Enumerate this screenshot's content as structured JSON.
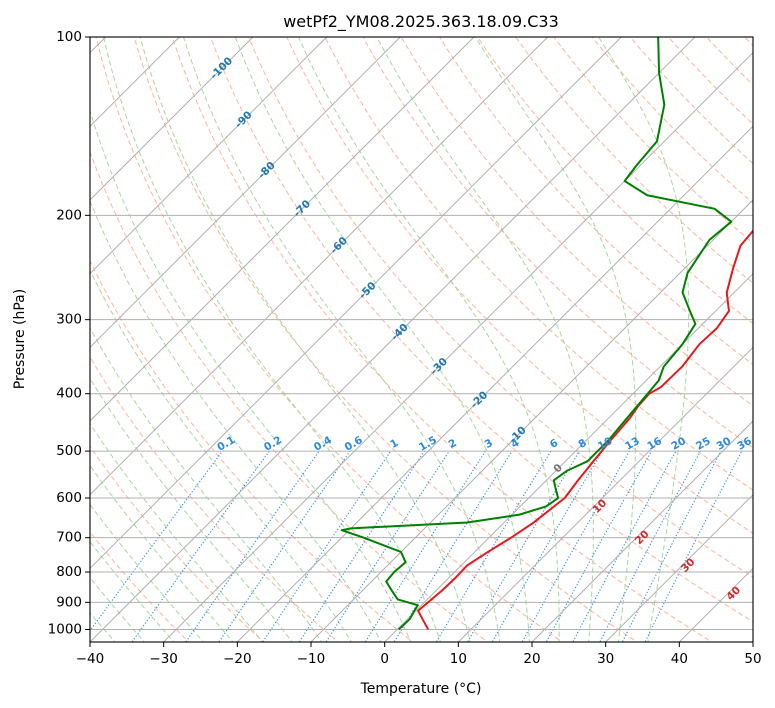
{
  "chart_data": {
    "type": "line",
    "chart_kind": "skew-T log-p",
    "title": "wetPf2_YM08.2025.363.18.09.C33",
    "xlabel": "Temperature (°C)",
    "ylabel": "Pressure (hPa)",
    "xlim": [
      -40,
      50
    ],
    "ylim_pressure": [
      1050,
      100
    ],
    "x_ticks": [
      -40,
      -30,
      -20,
      -10,
      0,
      10,
      20,
      30,
      40,
      50
    ],
    "x_tick_labels": [
      "−40",
      "−30",
      "−20",
      "−10",
      "0",
      "10",
      "20",
      "30",
      "40",
      "50"
    ],
    "y_ticks": [
      100,
      200,
      300,
      400,
      500,
      600,
      700,
      800,
      900,
      1000
    ],
    "y_tick_labels": [
      "100",
      "200",
      "300",
      "400",
      "500",
      "600",
      "700",
      "800",
      "900",
      "1000"
    ],
    "isotherms_labels": [
      {
        "t": -100,
        "p": 113,
        "text": "-100"
      },
      {
        "t": -90,
        "p": 138,
        "text": "-90"
      },
      {
        "t": -80,
        "p": 168,
        "text": "-80"
      },
      {
        "t": -70,
        "p": 195,
        "text": "-70"
      },
      {
        "t": -60,
        "p": 225,
        "text": "-60"
      },
      {
        "t": -50,
        "p": 268,
        "text": "-50"
      },
      {
        "t": -40,
        "p": 315,
        "text": "-40"
      },
      {
        "t": -30,
        "p": 360,
        "text": "-30"
      },
      {
        "t": -20,
        "p": 410,
        "text": "-20"
      },
      {
        "t": -10,
        "p": 470,
        "text": "-10"
      },
      {
        "t": 0,
        "p": 535,
        "text": "0"
      }
    ],
    "mixing_ratio_labels": [
      "0.1",
      "0.2",
      "0.4",
      "0.6",
      "1",
      "1.5",
      "2",
      "3",
      "4",
      "6",
      "8",
      "10",
      "13",
      "16",
      "20",
      "25",
      "30",
      "36"
    ],
    "dry_adiabat_labels": [
      "10",
      "20",
      "30",
      "40"
    ],
    "series": [
      {
        "name": "Temperature",
        "color": "#e31a1c",
        "points": [
          [
            1000,
            4.2
          ],
          [
            960,
            2.0
          ],
          [
            930,
            0.3
          ],
          [
            900,
            0.5
          ],
          [
            860,
            0.8
          ],
          [
            820,
            0.9
          ],
          [
            780,
            0.8
          ],
          [
            740,
            1.8
          ],
          [
            700,
            3.0
          ],
          [
            660,
            4.0
          ],
          [
            600,
            4.9
          ],
          [
            560,
            4.3
          ],
          [
            520,
            3.8
          ],
          [
            480,
            3.3
          ],
          [
            440,
            2.9
          ],
          [
            420,
            2.4
          ],
          [
            400,
            2.2
          ],
          [
            390,
            2.9
          ],
          [
            360,
            3.0
          ],
          [
            330,
            2.3
          ],
          [
            310,
            2.5
          ],
          [
            290,
            1.8
          ],
          [
            270,
            -1.0
          ],
          [
            245,
            -3.5
          ],
          [
            225,
            -5.5
          ],
          [
            205,
            -6.0
          ],
          [
            190,
            -2.0
          ],
          [
            175,
            4.0
          ],
          [
            160,
            10.0
          ],
          [
            145,
            20.0
          ],
          [
            130,
            28.0
          ],
          [
            115,
            36.0
          ],
          [
            100,
            45.0
          ]
        ]
      },
      {
        "name": "Dewpoint",
        "color": "#008000",
        "points": [
          [
            1000,
            0.2
          ],
          [
            960,
            0.3
          ],
          [
            930,
            -0.2
          ],
          [
            910,
            -0.5
          ],
          [
            890,
            -4.0
          ],
          [
            860,
            -6.0
          ],
          [
            830,
            -8.0
          ],
          [
            800,
            -8.2
          ],
          [
            770,
            -8.0
          ],
          [
            740,
            -10.0
          ],
          [
            700,
            -17.0
          ],
          [
            680,
            -21.0
          ],
          [
            675,
            -20.0
          ],
          [
            660,
            -5.0
          ],
          [
            640,
            1.0
          ],
          [
            620,
            3.5
          ],
          [
            600,
            4.0
          ],
          [
            580,
            2.5
          ],
          [
            560,
            1.0
          ],
          [
            540,
            1.5
          ],
          [
            520,
            3.0
          ],
          [
            480,
            3.0
          ],
          [
            440,
            2.5
          ],
          [
            400,
            2.0
          ],
          [
            380,
            1.7
          ],
          [
            360,
            0.5
          ],
          [
            330,
            0.0
          ],
          [
            305,
            -1.0
          ],
          [
            290,
            -3.5
          ],
          [
            270,
            -7.0
          ],
          [
            250,
            -9.0
          ],
          [
            220,
            -10.5
          ],
          [
            205,
            -10.0
          ],
          [
            195,
            -14.0
          ],
          [
            185,
            -25.0
          ],
          [
            175,
            -30.0
          ],
          [
            165,
            -30.5
          ],
          [
            150,
            -31.0
          ],
          [
            130,
            -35.0
          ],
          [
            115,
            -40.0
          ],
          [
            100,
            -45.0
          ]
        ]
      }
    ]
  }
}
